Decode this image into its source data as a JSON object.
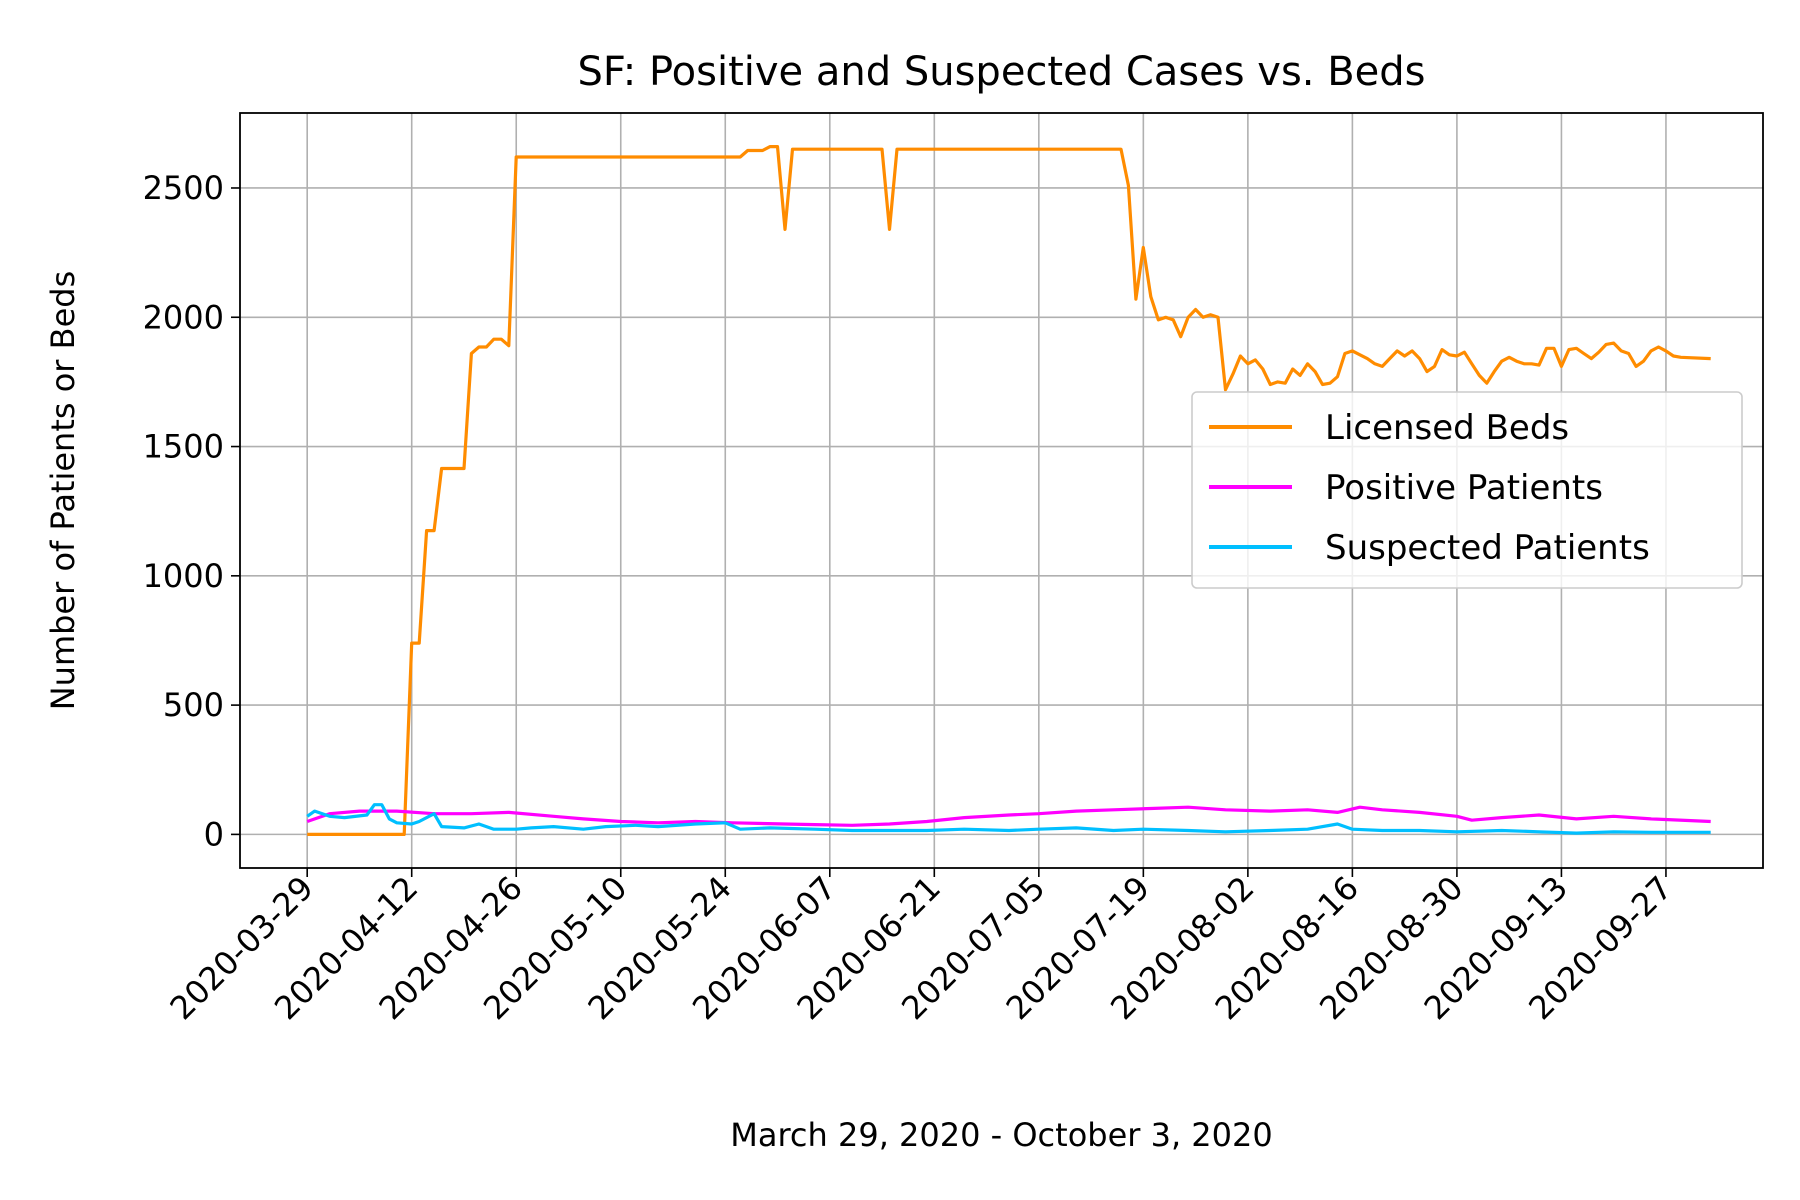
{
  "chart_data": {
    "type": "line",
    "title": "SF: Positive and Suspected Cases vs. Beds",
    "xlabel": "March 29, 2020 - October 3, 2020",
    "ylabel": "Number of Patients or Beds",
    "x_type": "date",
    "x_range": [
      "2020-03-29",
      "2020-10-03"
    ],
    "xlim": [
      "2020-03-20",
      "2020-10-10"
    ],
    "ylim": [
      -130,
      2790
    ],
    "x_ticks": [
      "2020-03-29",
      "2020-04-12",
      "2020-04-26",
      "2020-05-10",
      "2020-05-24",
      "2020-06-07",
      "2020-06-21",
      "2020-07-05",
      "2020-07-19",
      "2020-08-02",
      "2020-08-16",
      "2020-08-30",
      "2020-09-13",
      "2020-09-27"
    ],
    "y_ticks": [
      0,
      500,
      1000,
      1500,
      2000,
      2500
    ],
    "grid": true,
    "legend_position": "center-right",
    "series": [
      {
        "name": "Licensed Beds",
        "color": "#ff8c00",
        "points": [
          [
            "2020-03-29",
            0
          ],
          [
            "2020-04-10",
            0
          ],
          [
            "2020-04-11",
            0
          ],
          [
            "2020-04-12",
            740
          ],
          [
            "2020-04-13",
            740
          ],
          [
            "2020-04-14",
            1175
          ],
          [
            "2020-04-15",
            1175
          ],
          [
            "2020-04-16",
            1415
          ],
          [
            "2020-04-19",
            1415
          ],
          [
            "2020-04-20",
            1860
          ],
          [
            "2020-04-21",
            1885
          ],
          [
            "2020-04-22",
            1885
          ],
          [
            "2020-04-23",
            1915
          ],
          [
            "2020-04-24",
            1915
          ],
          [
            "2020-04-25",
            1890
          ],
          [
            "2020-04-26",
            2620
          ],
          [
            "2020-05-26",
            2620
          ],
          [
            "2020-05-27",
            2645
          ],
          [
            "2020-05-29",
            2645
          ],
          [
            "2020-05-30",
            2660
          ],
          [
            "2020-05-31",
            2660
          ],
          [
            "2020-06-01",
            2340
          ],
          [
            "2020-06-02",
            2650
          ],
          [
            "2020-06-14",
            2650
          ],
          [
            "2020-06-15",
            2340
          ],
          [
            "2020-06-16",
            2650
          ],
          [
            "2020-07-16",
            2650
          ],
          [
            "2020-07-17",
            2510
          ],
          [
            "2020-07-18",
            2070
          ],
          [
            "2020-07-19",
            2270
          ],
          [
            "2020-07-20",
            2080
          ],
          [
            "2020-07-21",
            1990
          ],
          [
            "2020-07-22",
            2000
          ],
          [
            "2020-07-23",
            1990
          ],
          [
            "2020-07-24",
            1925
          ],
          [
            "2020-07-25",
            2000
          ],
          [
            "2020-07-26",
            2030
          ],
          [
            "2020-07-27",
            2000
          ],
          [
            "2020-07-28",
            2010
          ],
          [
            "2020-07-29",
            2000
          ],
          [
            "2020-07-30",
            1720
          ],
          [
            "2020-07-31",
            1780
          ],
          [
            "2020-08-01",
            1850
          ],
          [
            "2020-08-02",
            1820
          ],
          [
            "2020-08-03",
            1835
          ],
          [
            "2020-08-04",
            1800
          ],
          [
            "2020-08-05",
            1740
          ],
          [
            "2020-08-06",
            1750
          ],
          [
            "2020-08-07",
            1745
          ],
          [
            "2020-08-08",
            1800
          ],
          [
            "2020-08-09",
            1775
          ],
          [
            "2020-08-10",
            1820
          ],
          [
            "2020-08-11",
            1790
          ],
          [
            "2020-08-12",
            1740
          ],
          [
            "2020-08-13",
            1745
          ],
          [
            "2020-08-14",
            1770
          ],
          [
            "2020-08-15",
            1860
          ],
          [
            "2020-08-16",
            1870
          ],
          [
            "2020-08-17",
            1855
          ],
          [
            "2020-08-18",
            1840
          ],
          [
            "2020-08-19",
            1820
          ],
          [
            "2020-08-20",
            1810
          ],
          [
            "2020-08-21",
            1840
          ],
          [
            "2020-08-22",
            1870
          ],
          [
            "2020-08-23",
            1850
          ],
          [
            "2020-08-24",
            1870
          ],
          [
            "2020-08-25",
            1840
          ],
          [
            "2020-08-26",
            1790
          ],
          [
            "2020-08-27",
            1810
          ],
          [
            "2020-08-28",
            1875
          ],
          [
            "2020-08-29",
            1855
          ],
          [
            "2020-08-30",
            1850
          ],
          [
            "2020-08-31",
            1865
          ],
          [
            "2020-09-01",
            1820
          ],
          [
            "2020-09-02",
            1775
          ],
          [
            "2020-09-03",
            1745
          ],
          [
            "2020-09-04",
            1790
          ],
          [
            "2020-09-05",
            1830
          ],
          [
            "2020-09-06",
            1845
          ],
          [
            "2020-09-07",
            1830
          ],
          [
            "2020-09-08",
            1820
          ],
          [
            "2020-09-09",
            1820
          ],
          [
            "2020-09-10",
            1815
          ],
          [
            "2020-09-11",
            1880
          ],
          [
            "2020-09-12",
            1880
          ],
          [
            "2020-09-13",
            1810
          ],
          [
            "2020-09-14",
            1875
          ],
          [
            "2020-09-15",
            1880
          ],
          [
            "2020-09-16",
            1860
          ],
          [
            "2020-09-17",
            1840
          ],
          [
            "2020-09-18",
            1865
          ],
          [
            "2020-09-19",
            1895
          ],
          [
            "2020-09-20",
            1900
          ],
          [
            "2020-09-21",
            1870
          ],
          [
            "2020-09-22",
            1860
          ],
          [
            "2020-09-23",
            1810
          ],
          [
            "2020-09-24",
            1830
          ],
          [
            "2020-09-25",
            1870
          ],
          [
            "2020-09-26",
            1885
          ],
          [
            "2020-09-27",
            1870
          ],
          [
            "2020-09-28",
            1850
          ],
          [
            "2020-09-29",
            1845
          ],
          [
            "2020-10-03",
            1840
          ]
        ]
      },
      {
        "name": "Positive Patients",
        "color": "#ff00ff",
        "points": [
          [
            "2020-03-29",
            50
          ],
          [
            "2020-04-01",
            80
          ],
          [
            "2020-04-05",
            90
          ],
          [
            "2020-04-10",
            90
          ],
          [
            "2020-04-15",
            80
          ],
          [
            "2020-04-20",
            80
          ],
          [
            "2020-04-25",
            85
          ],
          [
            "2020-05-01",
            70
          ],
          [
            "2020-05-05",
            60
          ],
          [
            "2020-05-10",
            50
          ],
          [
            "2020-05-15",
            45
          ],
          [
            "2020-05-20",
            50
          ],
          [
            "2020-05-25",
            45
          ],
          [
            "2020-06-01",
            40
          ],
          [
            "2020-06-05",
            38
          ],
          [
            "2020-06-10",
            35
          ],
          [
            "2020-06-15",
            40
          ],
          [
            "2020-06-20",
            50
          ],
          [
            "2020-06-25",
            65
          ],
          [
            "2020-07-01",
            75
          ],
          [
            "2020-07-05",
            80
          ],
          [
            "2020-07-10",
            90
          ],
          [
            "2020-07-15",
            95
          ],
          [
            "2020-07-20",
            100
          ],
          [
            "2020-07-25",
            105
          ],
          [
            "2020-07-30",
            95
          ],
          [
            "2020-08-05",
            90
          ],
          [
            "2020-08-10",
            95
          ],
          [
            "2020-08-14",
            85
          ],
          [
            "2020-08-17",
            105
          ],
          [
            "2020-08-20",
            95
          ],
          [
            "2020-08-25",
            85
          ],
          [
            "2020-08-30",
            70
          ],
          [
            "2020-09-01",
            55
          ],
          [
            "2020-09-05",
            65
          ],
          [
            "2020-09-10",
            75
          ],
          [
            "2020-09-15",
            60
          ],
          [
            "2020-09-20",
            70
          ],
          [
            "2020-09-25",
            60
          ],
          [
            "2020-10-03",
            50
          ]
        ]
      },
      {
        "name": "Suspected Patients",
        "color": "#00bfff",
        "points": [
          [
            "2020-03-29",
            70
          ],
          [
            "2020-03-30",
            90
          ],
          [
            "2020-04-01",
            70
          ],
          [
            "2020-04-03",
            65
          ],
          [
            "2020-04-06",
            75
          ],
          [
            "2020-04-07",
            115
          ],
          [
            "2020-04-08",
            115
          ],
          [
            "2020-04-09",
            60
          ],
          [
            "2020-04-10",
            45
          ],
          [
            "2020-04-12",
            40
          ],
          [
            "2020-04-13",
            50
          ],
          [
            "2020-04-15",
            80
          ],
          [
            "2020-04-16",
            30
          ],
          [
            "2020-04-19",
            25
          ],
          [
            "2020-04-21",
            40
          ],
          [
            "2020-04-23",
            20
          ],
          [
            "2020-04-26",
            20
          ],
          [
            "2020-04-28",
            25
          ],
          [
            "2020-05-01",
            30
          ],
          [
            "2020-05-05",
            20
          ],
          [
            "2020-05-08",
            30
          ],
          [
            "2020-05-12",
            35
          ],
          [
            "2020-05-15",
            30
          ],
          [
            "2020-05-20",
            40
          ],
          [
            "2020-05-24",
            45
          ],
          [
            "2020-05-26",
            20
          ],
          [
            "2020-05-30",
            25
          ],
          [
            "2020-06-05",
            20
          ],
          [
            "2020-06-10",
            15
          ],
          [
            "2020-06-15",
            15
          ],
          [
            "2020-06-20",
            15
          ],
          [
            "2020-06-25",
            20
          ],
          [
            "2020-07-01",
            15
          ],
          [
            "2020-07-05",
            20
          ],
          [
            "2020-07-10",
            25
          ],
          [
            "2020-07-15",
            15
          ],
          [
            "2020-07-19",
            20
          ],
          [
            "2020-07-25",
            15
          ],
          [
            "2020-07-30",
            10
          ],
          [
            "2020-08-05",
            15
          ],
          [
            "2020-08-10",
            20
          ],
          [
            "2020-08-14",
            40
          ],
          [
            "2020-08-16",
            20
          ],
          [
            "2020-08-20",
            15
          ],
          [
            "2020-08-25",
            15
          ],
          [
            "2020-08-30",
            10
          ],
          [
            "2020-09-05",
            15
          ],
          [
            "2020-09-10",
            10
          ],
          [
            "2020-09-15",
            5
          ],
          [
            "2020-09-20",
            10
          ],
          [
            "2020-09-25",
            8
          ],
          [
            "2020-10-03",
            8
          ]
        ]
      }
    ]
  }
}
